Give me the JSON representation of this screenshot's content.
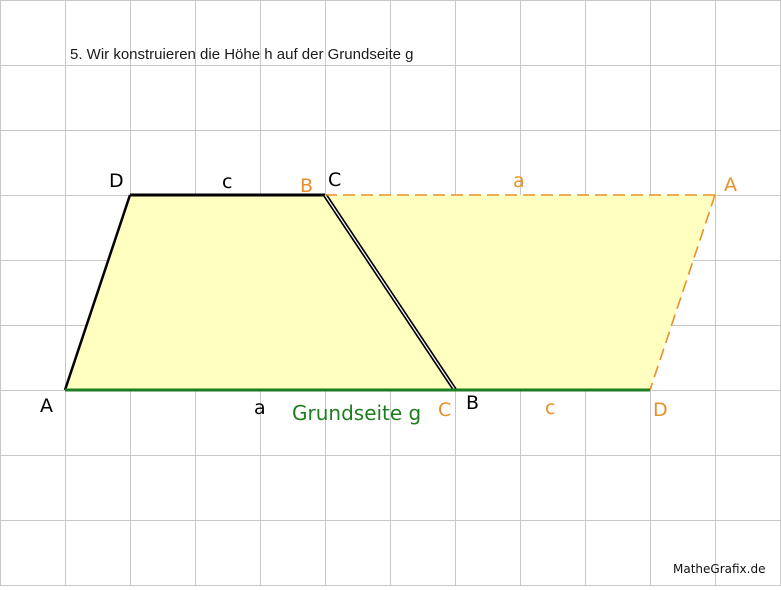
{
  "caption": "5. Wir konstruieren die Höhe h auf der Grundseite g",
  "credit": "MatheGrafix.de",
  "colors": {
    "grid": "#c8c8c8",
    "fill": "#ffffc0",
    "outline": "#000000",
    "base": "#1e7d1e",
    "copy": "#e8902a"
  },
  "labels": {
    "trap_A": "A",
    "trap_B": "B",
    "trap_C": "C",
    "trap_D": "D",
    "side_a": "a",
    "side_c": "c",
    "copy_A": "A",
    "copy_B": "B",
    "copy_C": "C",
    "copy_D": "D",
    "copy_side_a": "a",
    "copy_side_c": "c",
    "base_label": "Grundseite g"
  }
}
